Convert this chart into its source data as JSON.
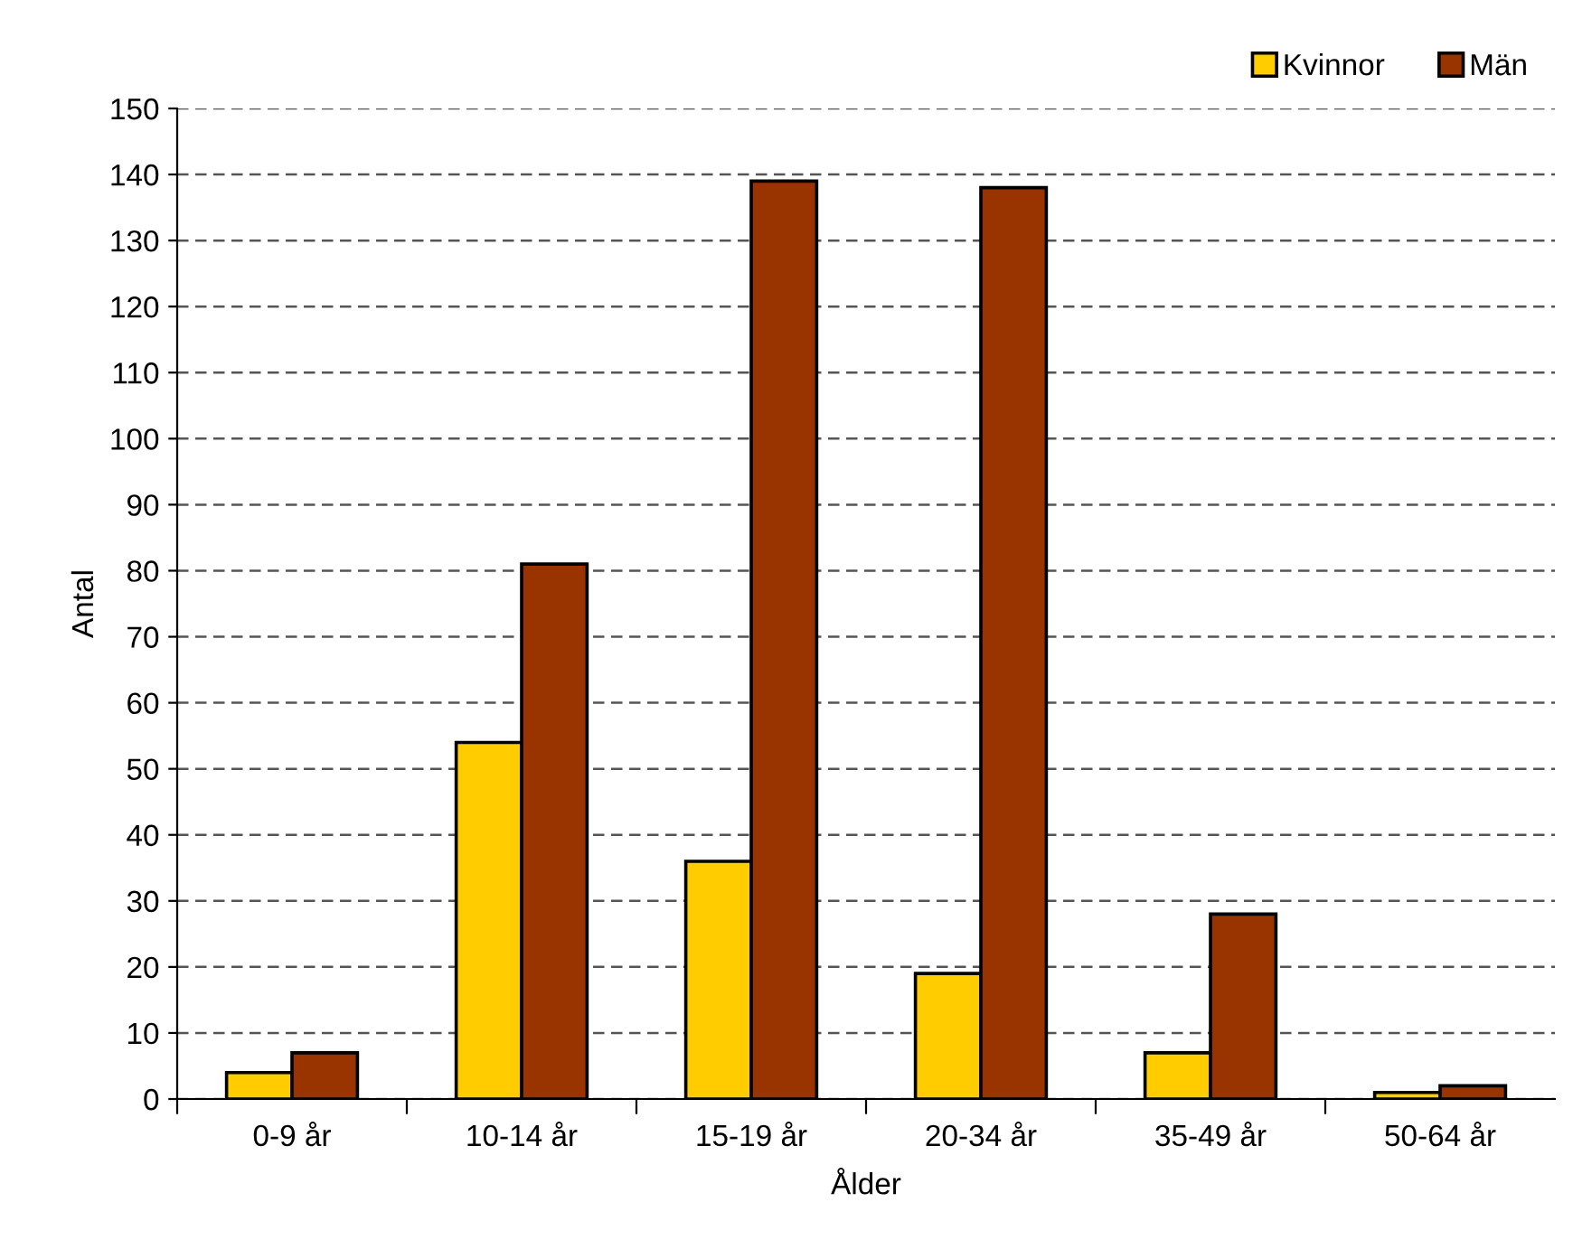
{
  "chart_data": {
    "type": "bar",
    "xlabel": "Ålder",
    "ylabel": "Antal",
    "categories": [
      "0-9 år",
      "10-14 år",
      "15-19 år",
      "20-34 år",
      "35-49 år",
      "50-64 år"
    ],
    "series": [
      {
        "name": "Kvinnor",
        "color": "#ffcc00",
        "values": [
          4,
          54,
          36,
          19,
          7,
          1
        ]
      },
      {
        "name": "Män",
        "color": "#993300",
        "values": [
          7,
          81,
          139,
          138,
          28,
          2
        ]
      }
    ],
    "ylim": [
      0,
      150
    ],
    "yticks": [
      0,
      10,
      20,
      30,
      40,
      50,
      60,
      70,
      80,
      90,
      100,
      110,
      120,
      130,
      140,
      150
    ],
    "grid": "y",
    "legend": "top right"
  }
}
